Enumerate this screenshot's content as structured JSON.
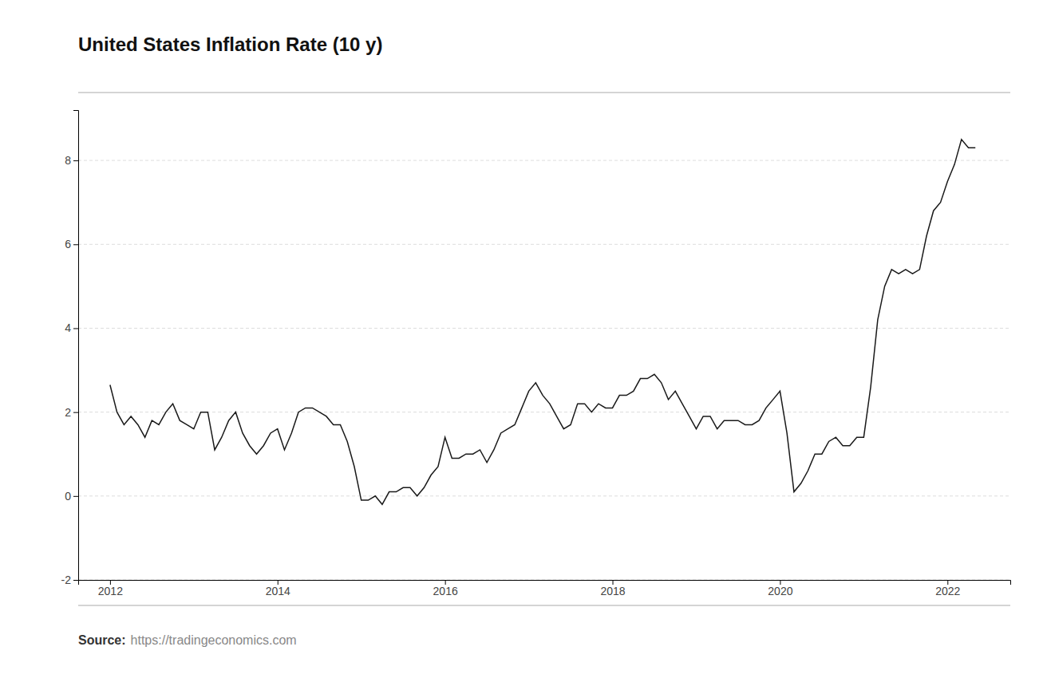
{
  "chart_data": {
    "type": "line",
    "title": "United States Inflation Rate (10 y)",
    "annotations": [
      "Source:",
      "https://tradingeconomics.com"
    ],
    "color": "#1a1a1a",
    "grid": true,
    "xlim": [
      2011.62,
      2022.75
    ],
    "xticks": [
      2012,
      2014,
      2016,
      2018,
      2020,
      2022
    ],
    "ylim": [
      -2.0,
      9.2
    ],
    "yticks": [
      -2,
      0,
      2,
      4,
      6,
      8
    ],
    "x": [
      2012.0,
      2012.083,
      2012.167,
      2012.25,
      2012.333,
      2012.417,
      2012.5,
      2012.583,
      2012.667,
      2012.75,
      2012.833,
      2012.917,
      2013.0,
      2013.083,
      2013.167,
      2013.25,
      2013.333,
      2013.417,
      2013.5,
      2013.583,
      2013.667,
      2013.75,
      2013.833,
      2013.917,
      2014.0,
      2014.083,
      2014.167,
      2014.25,
      2014.333,
      2014.417,
      2014.5,
      2014.583,
      2014.667,
      2014.75,
      2014.833,
      2014.917,
      2015.0,
      2015.083,
      2015.167,
      2015.25,
      2015.333,
      2015.417,
      2015.5,
      2015.583,
      2015.667,
      2015.75,
      2015.833,
      2015.917,
      2016.0,
      2016.083,
      2016.167,
      2016.25,
      2016.333,
      2016.417,
      2016.5,
      2016.583,
      2016.667,
      2016.75,
      2016.833,
      2016.917,
      2017.0,
      2017.083,
      2017.167,
      2017.25,
      2017.333,
      2017.417,
      2017.5,
      2017.583,
      2017.667,
      2017.75,
      2017.833,
      2017.917,
      2018.0,
      2018.083,
      2018.167,
      2018.25,
      2018.333,
      2018.417,
      2018.5,
      2018.583,
      2018.667,
      2018.75,
      2018.833,
      2018.917,
      2019.0,
      2019.083,
      2019.167,
      2019.25,
      2019.333,
      2019.417,
      2019.5,
      2019.583,
      2019.667,
      2019.75,
      2019.833,
      2019.917,
      2020.0,
      2020.083,
      2020.167,
      2020.25,
      2020.333,
      2020.417,
      2020.5,
      2020.583,
      2020.667,
      2020.75,
      2020.833,
      2020.917,
      2021.0,
      2021.083,
      2021.167,
      2021.25,
      2021.333,
      2021.417,
      2021.5,
      2021.583,
      2021.667,
      2021.75,
      2021.833,
      2021.917,
      2022.0,
      2022.083,
      2022.167,
      2022.25,
      2022.333
    ],
    "values": [
      2.65,
      2.0,
      1.7,
      1.9,
      1.7,
      1.4,
      1.8,
      1.7,
      2.0,
      2.2,
      1.8,
      1.7,
      1.6,
      2.0,
      2.0,
      1.1,
      1.4,
      1.8,
      2.0,
      1.5,
      1.2,
      1.0,
      1.2,
      1.5,
      1.6,
      1.1,
      1.5,
      2.0,
      2.1,
      2.1,
      2.0,
      1.9,
      1.7,
      1.7,
      1.3,
      0.7,
      -0.1,
      -0.1,
      0.0,
      -0.2,
      0.1,
      0.1,
      0.2,
      0.2,
      0.0,
      0.2,
      0.5,
      0.7,
      1.4,
      0.9,
      0.9,
      1.0,
      1.0,
      1.1,
      0.8,
      1.1,
      1.5,
      1.6,
      1.7,
      2.1,
      2.5,
      2.7,
      2.4,
      2.2,
      1.9,
      1.6,
      1.7,
      2.2,
      2.2,
      2.0,
      2.2,
      2.1,
      2.1,
      2.4,
      2.4,
      2.5,
      2.8,
      2.8,
      2.9,
      2.7,
      2.3,
      2.5,
      2.2,
      1.9,
      1.6,
      1.9,
      1.9,
      1.6,
      1.8,
      1.8,
      1.8,
      1.7,
      1.7,
      1.8,
      2.1,
      2.3,
      2.5,
      1.5,
      0.1,
      0.3,
      0.6,
      1.0,
      1.0,
      1.3,
      1.4,
      1.2,
      1.2,
      1.4,
      1.4,
      2.6,
      4.2,
      5.0,
      5.4,
      5.3,
      5.4,
      5.3,
      5.4,
      6.2,
      6.8,
      7.0,
      7.5,
      7.9,
      8.5,
      8.3,
      8.3
    ]
  }
}
